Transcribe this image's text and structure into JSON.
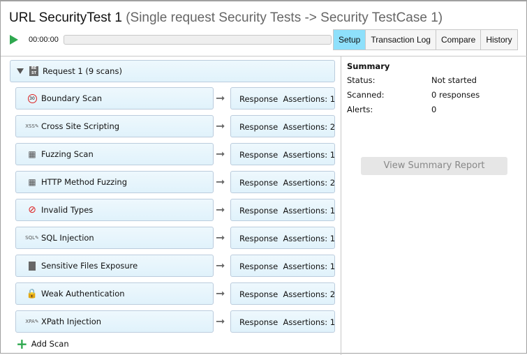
{
  "title": {
    "main": "URL SecurityTest 1",
    "sub": "(Single request Security Tests -> Security TestCase 1)"
  },
  "toolbar": {
    "time": "00:00:00",
    "progress": 0
  },
  "tabs": [
    {
      "label": "Setup",
      "active": true
    },
    {
      "label": "Transaction Log"
    },
    {
      "label": "Compare"
    },
    {
      "label": "History"
    }
  ],
  "request": {
    "label": "Request 1 (9 scans)",
    "icon": "REST"
  },
  "scans": [
    {
      "name": "Boundary Scan",
      "icon": "boundary-icon",
      "assertion": "Response  Assertions: 1"
    },
    {
      "name": "Cross Site Scripting",
      "icon": "xss-icon",
      "assertion": "Response  Assertions: 2"
    },
    {
      "name": "Fuzzing Scan",
      "icon": "fuzzing-icon",
      "assertion": "Response  Assertions: 1"
    },
    {
      "name": "HTTP Method Fuzzing",
      "icon": "fuzzing-icon",
      "assertion": "Response  Assertions: 2"
    },
    {
      "name": "Invalid Types",
      "icon": "prohibited-icon",
      "assertion": "Response  Assertions: 1"
    },
    {
      "name": "SQL Injection",
      "icon": "sql-icon",
      "assertion": "Response  Assertions: 1"
    },
    {
      "name": "Sensitive Files Exposure",
      "icon": "file-icon",
      "assertion": "Response  Assertions: 1"
    },
    {
      "name": "Weak Authentication",
      "icon": "lock-icon",
      "assertion": "Response  Assertions: 2"
    },
    {
      "name": "XPath Injection",
      "icon": "xpath-icon",
      "assertion": "Response  Assertions: 1"
    }
  ],
  "add_scan": "Add Scan",
  "summary": {
    "title": "Summary",
    "rows": [
      {
        "k": "Status:",
        "v": "Not started"
      },
      {
        "k": "Scanned:",
        "v": "0 responses"
      },
      {
        "k": "Alerts:",
        "v": "0"
      }
    ],
    "button": "View Summary Report"
  },
  "colors": {
    "active_tab": "#8ee0fb",
    "play": "#2fa84f"
  }
}
